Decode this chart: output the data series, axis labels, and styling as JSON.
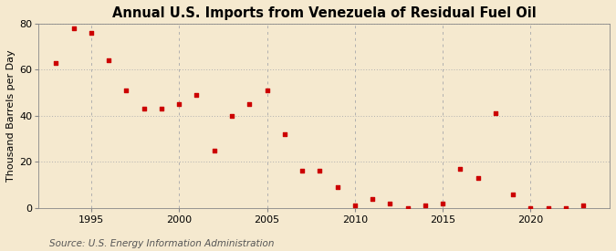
{
  "title": "Annual U.S. Imports from Venezuela of Residual Fuel Oil",
  "ylabel": "Thousand Barrels per Day",
  "source": "Source: U.S. Energy Information Administration",
  "background_color": "#f5e9cf",
  "plot_background_color": "#f5e9cf",
  "marker_color": "#cc0000",
  "years": [
    1993,
    1994,
    1995,
    1996,
    1997,
    1998,
    1999,
    2000,
    2001,
    2002,
    2003,
    2004,
    2005,
    2006,
    2007,
    2008,
    2009,
    2010,
    2011,
    2012,
    2013,
    2014,
    2015,
    2016,
    2017,
    2018,
    2019,
    2020,
    2021,
    2022,
    2023
  ],
  "values": [
    63,
    78,
    76,
    64,
    51,
    43,
    43,
    45,
    49,
    25,
    40,
    45,
    51,
    32,
    16,
    16,
    9,
    1,
    4,
    2,
    0,
    1,
    2,
    17,
    13,
    41,
    6,
    0,
    0,
    0,
    1
  ],
  "ylim": [
    0,
    80
  ],
  "yticks": [
    0,
    20,
    40,
    60,
    80
  ],
  "xlim": [
    1992.0,
    2024.5
  ],
  "xticks": [
    1995,
    2000,
    2005,
    2010,
    2015,
    2020
  ],
  "grid_color": "#b0b0b0",
  "title_fontsize": 10.5,
  "label_fontsize": 8,
  "tick_fontsize": 8,
  "source_fontsize": 7.5
}
